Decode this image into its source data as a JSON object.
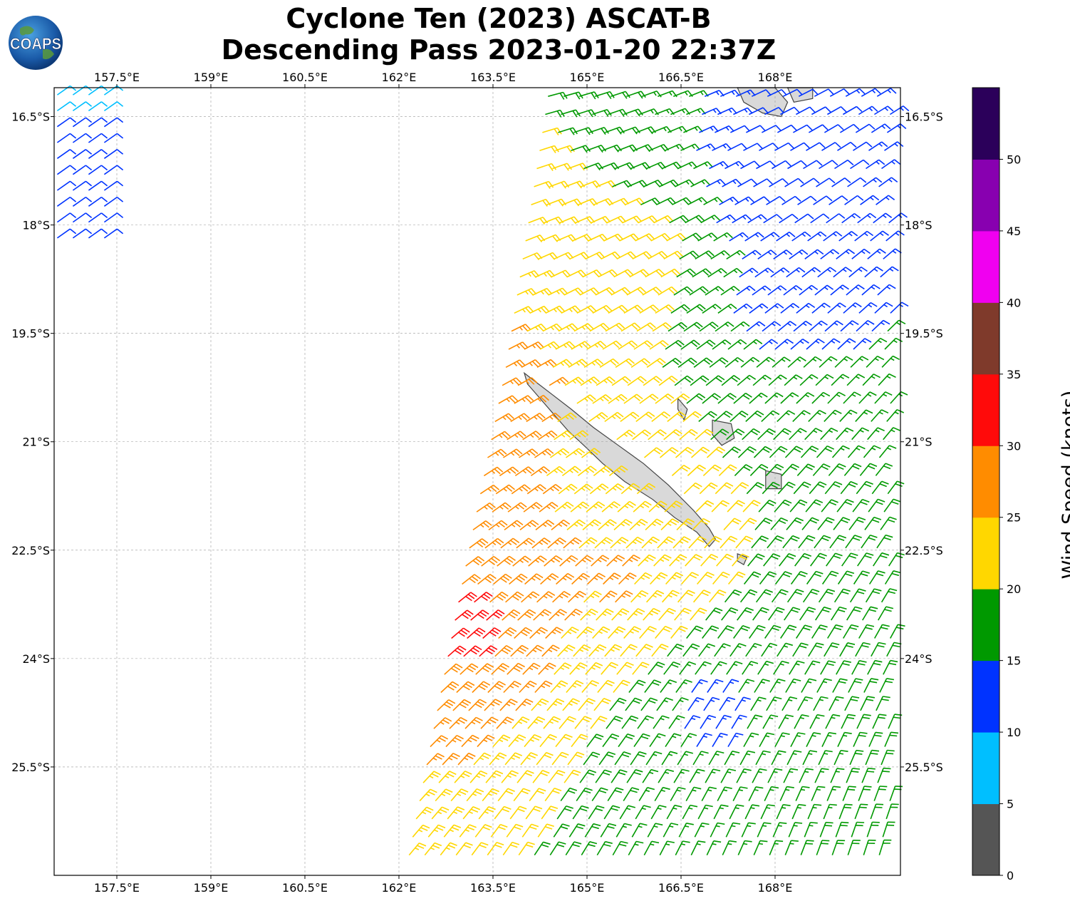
{
  "title": {
    "line1": "Cyclone Ten (2023) ASCAT-B",
    "line2": "Descending Pass 2023-01-20 22:37Z"
  },
  "logo": {
    "text": "COAPS",
    "icon": "globe-logo"
  },
  "map": {
    "lon_range": [
      156.5,
      170.0
    ],
    "lat_range": [
      -27.0,
      -16.1
    ],
    "x_ticks": [
      {
        "value": 157.5,
        "label": "157.5°E"
      },
      {
        "value": 159.0,
        "label": "159°E"
      },
      {
        "value": 160.5,
        "label": "160.5°E"
      },
      {
        "value": 162.0,
        "label": "162°E"
      },
      {
        "value": 163.5,
        "label": "163.5°E"
      },
      {
        "value": 165.0,
        "label": "165°E"
      },
      {
        "value": 166.5,
        "label": "166.5°E"
      },
      {
        "value": 168.0,
        "label": "168°E"
      }
    ],
    "y_ticks": [
      {
        "value": -16.5,
        "label": "16.5°S"
      },
      {
        "value": -18.0,
        "label": "18°S"
      },
      {
        "value": -19.5,
        "label": "19.5°S"
      },
      {
        "value": -21.0,
        "label": "21°S"
      },
      {
        "value": -22.5,
        "label": "22.5°S"
      },
      {
        "value": -24.0,
        "label": "24°S"
      },
      {
        "value": -25.5,
        "label": "25.5°S"
      }
    ],
    "grid": true,
    "land_color": "#d9d9d9",
    "coast_color": "#444444"
  },
  "colorbar": {
    "label": "Wind Speed (knots)",
    "bins": [
      {
        "from": 0,
        "to": 5,
        "color": "#555555"
      },
      {
        "from": 5,
        "to": 10,
        "color": "#00bfff"
      },
      {
        "from": 10,
        "to": 15,
        "color": "#0033ff"
      },
      {
        "from": 15,
        "to": 20,
        "color": "#009900"
      },
      {
        "from": 20,
        "to": 25,
        "color": "#ffd700"
      },
      {
        "from": 25,
        "to": 30,
        "color": "#ff8c00"
      },
      {
        "from": 30,
        "to": 35,
        "color": "#ff0a0a"
      },
      {
        "from": 35,
        "to": 40,
        "color": "#7f3a2b"
      },
      {
        "from": 40,
        "to": 45,
        "color": "#f000f0"
      },
      {
        "from": 45,
        "to": 50,
        "color": "#8800b0"
      },
      {
        "from": 50,
        "to": 55,
        "color": "#2b005a"
      }
    ],
    "tick_labels": [
      "0",
      "5",
      "10",
      "15",
      "20",
      "25",
      "30",
      "35",
      "40",
      "45",
      "50"
    ]
  },
  "wind_field": {
    "swath_east_lon": 170.0,
    "swath_west_edge": [
      [
        -16.1,
        164.4
      ],
      [
        -20.0,
        163.7
      ],
      [
        -23.0,
        163.0
      ],
      [
        -27.0,
        162.1
      ]
    ],
    "nw_swath_lon": [
      156.5,
      157.5
    ],
    "nw_swath_lat": [
      -16.1,
      -18.3
    ],
    "speed_regions": [
      {
        "name": "southwest max",
        "lat": -23.6,
        "lon": 163.0,
        "speed": 32
      },
      {
        "name": "west of island",
        "lat": -20.3,
        "lon": 163.7,
        "speed": 27
      },
      {
        "name": "south band",
        "lat": -23.0,
        "lon": 165.5,
        "speed": 26
      },
      {
        "name": "north interior",
        "lat": -18.5,
        "lon": 165.8,
        "speed": 22
      },
      {
        "name": "northeast weak",
        "lat": -17.3,
        "lon": 168.0,
        "speed": 9
      },
      {
        "name": "east band",
        "lat": -19.0,
        "lon": 168.0,
        "speed": 13
      },
      {
        "name": "south weak",
        "lat": -24.8,
        "lon": 166.8,
        "speed": 13
      },
      {
        "name": "southeast",
        "lat": -26.5,
        "lon": 166.0,
        "speed": 17
      }
    ],
    "dominant_direction": "southeasterly"
  },
  "land_masses": [
    {
      "name": "Grande Terre",
      "polygon": [
        [
          -20.05,
          164.0
        ],
        [
          -20.2,
          164.05
        ],
        [
          -20.4,
          164.25
        ],
        [
          -20.6,
          164.45
        ],
        [
          -20.85,
          164.7
        ],
        [
          -21.05,
          164.95
        ],
        [
          -21.3,
          165.25
        ],
        [
          -21.55,
          165.6
        ],
        [
          -21.8,
          166.05
        ],
        [
          -22.05,
          166.4
        ],
        [
          -22.25,
          166.75
        ],
        [
          -22.45,
          166.95
        ],
        [
          -22.35,
          167.05
        ],
        [
          -22.2,
          166.95
        ],
        [
          -21.95,
          166.7
        ],
        [
          -21.6,
          166.3
        ],
        [
          -21.3,
          165.9
        ],
        [
          -21.05,
          165.5
        ],
        [
          -20.8,
          165.1
        ],
        [
          -20.55,
          164.75
        ],
        [
          -20.35,
          164.45
        ],
        [
          -20.15,
          164.15
        ]
      ]
    },
    {
      "name": "Lifou",
      "polygon": [
        [
          -20.7,
          167.0
        ],
        [
          -20.75,
          167.3
        ],
        [
          -20.95,
          167.35
        ],
        [
          -21.05,
          167.15
        ],
        [
          -20.9,
          167.0
        ]
      ]
    },
    {
      "name": "Mare",
      "polygon": [
        [
          -21.4,
          167.85
        ],
        [
          -21.45,
          168.1
        ],
        [
          -21.65,
          168.1
        ],
        [
          -21.65,
          167.85
        ]
      ]
    },
    {
      "name": "Ouvea",
      "polygon": [
        [
          -20.4,
          166.45
        ],
        [
          -20.55,
          166.6
        ],
        [
          -20.7,
          166.55
        ],
        [
          -20.55,
          166.45
        ]
      ]
    },
    {
      "name": "Isle of Pines",
      "polygon": [
        [
          -22.55,
          167.4
        ],
        [
          -22.6,
          167.55
        ],
        [
          -22.7,
          167.5
        ],
        [
          -22.65,
          167.4
        ]
      ]
    },
    {
      "name": "Vanuatu south",
      "polygon": [
        [
          -16.1,
          167.4
        ],
        [
          -16.3,
          167.5
        ],
        [
          -16.45,
          167.8
        ],
        [
          -16.5,
          168.1
        ],
        [
          -16.3,
          168.2
        ],
        [
          -16.1,
          168.0
        ]
      ]
    },
    {
      "name": "Vanuatu east",
      "polygon": [
        [
          -16.1,
          168.2
        ],
        [
          -16.3,
          168.3
        ],
        [
          -16.25,
          168.6
        ],
        [
          -16.1,
          168.6
        ]
      ]
    }
  ]
}
